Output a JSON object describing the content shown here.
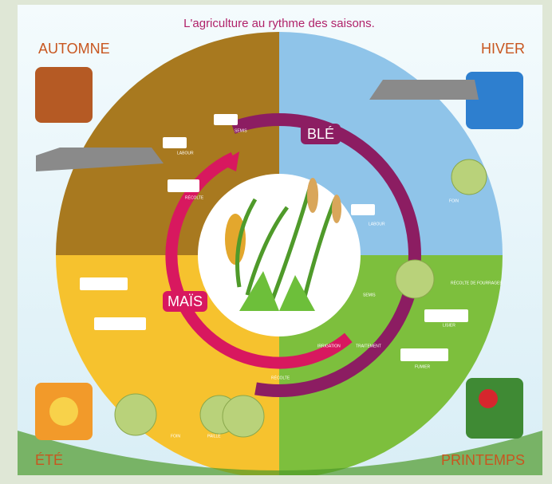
{
  "header": {
    "title": "L'agriculture au rythme des saisons."
  },
  "seasons": {
    "autumn": "AUTOMNE",
    "winter": "HIVER",
    "summer": "ÉTÉ",
    "spring": "PRINTEMPS"
  },
  "cycles": {
    "wheat": "BLÉ",
    "corn": "MAÏS"
  },
  "activities": [
    "SEMIS",
    "LABOUR",
    "RÉCOLTE",
    "LABOUR",
    "FOIN",
    "RÉCOLTE DE FOURRAGES",
    "SEMIS",
    "LISIER",
    "IRRIGATION",
    "TRAITEMENT",
    "FUMIER",
    "RÉCOLTE",
    "FOIN",
    "PAILLE"
  ]
}
